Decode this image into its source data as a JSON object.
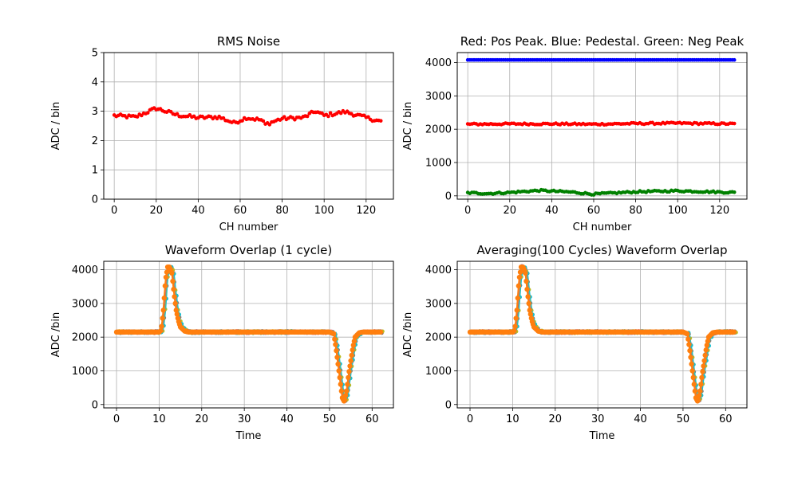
{
  "chart_data": [
    {
      "type": "scatter",
      "title": "RMS Noise",
      "xlabel": "CH number",
      "ylabel": "ADC / bin",
      "xlim": [
        -5,
        133
      ],
      "ylim": [
        0,
        5
      ],
      "xticks": [
        "0",
        "20",
        "40",
        "60",
        "80",
        "100",
        "120"
      ],
      "yticks": [
        "0",
        "1",
        "2",
        "3",
        "4",
        "5"
      ],
      "grid": true,
      "series": [
        {
          "color": "#ff0000",
          "marker": "dot",
          "line": true,
          "x": [
            0,
            10,
            20,
            30,
            40,
            50,
            57,
            63,
            70,
            72,
            80,
            90,
            96,
            100,
            110,
            120,
            127
          ],
          "values": [
            2.85,
            2.8,
            3.1,
            2.87,
            2.78,
            2.8,
            2.6,
            2.78,
            2.7,
            2.55,
            2.75,
            2.78,
            3.0,
            2.85,
            2.98,
            2.78,
            2.65
          ]
        }
      ]
    },
    {
      "type": "scatter",
      "title": "Red: Pos Peak. Blue: Pedestal. Green: Neg Peak",
      "xlabel": "CH number",
      "ylabel": "ADC / bin",
      "xlim": [
        -5,
        133
      ],
      "ylim": [
        -100,
        4300
      ],
      "xticks": [
        "0",
        "20",
        "40",
        "60",
        "80",
        "100",
        "120"
      ],
      "yticks": [
        "0",
        "1000",
        "2000",
        "3000",
        "4000"
      ],
      "grid": true,
      "series": [
        {
          "color": "#0000ff",
          "marker": "dot",
          "line": true,
          "x": [
            0,
            64,
            127
          ],
          "values": [
            4080,
            4080,
            4080
          ]
        },
        {
          "color": "#ff0000",
          "marker": "dot",
          "line": true,
          "x": [
            0,
            20,
            40,
            60,
            80,
            100,
            127
          ],
          "values": [
            2150,
            2160,
            2160,
            2150,
            2170,
            2180,
            2160
          ]
        },
        {
          "color": "#008000",
          "marker": "dot",
          "line": true,
          "x": [
            0,
            10,
            20,
            34,
            50,
            60,
            80,
            100,
            127
          ],
          "values": [
            90,
            70,
            100,
            160,
            110,
            50,
            120,
            150,
            100
          ]
        }
      ]
    },
    {
      "type": "line",
      "title": "Waveform Overlap (1 cycle)",
      "xlabel": "Time",
      "ylabel": "ADC /bin",
      "xlim": [
        -3,
        65
      ],
      "ylim": [
        -100,
        4250
      ],
      "xticks": [
        "0",
        "10",
        "20",
        "30",
        "40",
        "50",
        "60"
      ],
      "yticks": [
        "0",
        "1000",
        "2000",
        "3000",
        "4000"
      ],
      "grid": true,
      "series": [
        {
          "color": "#ff7f0e",
          "marker": "dot",
          "x": [
            0,
            10,
            10.5,
            11,
            11.5,
            12,
            12.5,
            13,
            13.5,
            14,
            14.5,
            15,
            16,
            17,
            50,
            51,
            51.5,
            52,
            52.5,
            53,
            53.5,
            54,
            54.5,
            55,
            55.5,
            56,
            57,
            58,
            62
          ],
          "values": [
            2150,
            2150,
            2200,
            2800,
            3700,
            4080,
            4080,
            3900,
            3300,
            2800,
            2500,
            2300,
            2180,
            2150,
            2150,
            2100,
            1700,
            1200,
            700,
            200,
            80,
            400,
            900,
            1300,
            1700,
            2000,
            2130,
            2150,
            2150
          ]
        }
      ]
    },
    {
      "type": "line",
      "title": "Averaging(100 Cycles) Waveform Overlap",
      "xlabel": "Time",
      "ylabel": "ADC /bin",
      "xlim": [
        -3,
        65
      ],
      "ylim": [
        -100,
        4250
      ],
      "xticks": [
        "0",
        "10",
        "20",
        "30",
        "40",
        "50",
        "60"
      ],
      "yticks": [
        "0",
        "1000",
        "2000",
        "3000",
        "4000"
      ],
      "grid": true,
      "series": [
        {
          "color": "#ff7f0e",
          "marker": "dot",
          "x": [
            0,
            10,
            10.5,
            11,
            11.5,
            12,
            12.5,
            13,
            13.5,
            14,
            14.5,
            15,
            16,
            17,
            50,
            51,
            51.5,
            52,
            52.5,
            53,
            53.5,
            54,
            54.5,
            55,
            55.5,
            56,
            57,
            58,
            62
          ],
          "values": [
            2150,
            2150,
            2200,
            2800,
            3700,
            4080,
            4080,
            3900,
            3300,
            2800,
            2500,
            2300,
            2180,
            2150,
            2150,
            2100,
            1700,
            1200,
            700,
            200,
            80,
            400,
            900,
            1300,
            1700,
            2000,
            2130,
            2150,
            2150
          ]
        }
      ]
    }
  ],
  "palette": {
    "waveform_underlay": [
      "#1f77b4",
      "#2ca02c",
      "#d62728",
      "#9467bd",
      "#8c564b",
      "#e377c2",
      "#7f7f7f",
      "#bcbd22",
      "#17becf"
    ]
  }
}
